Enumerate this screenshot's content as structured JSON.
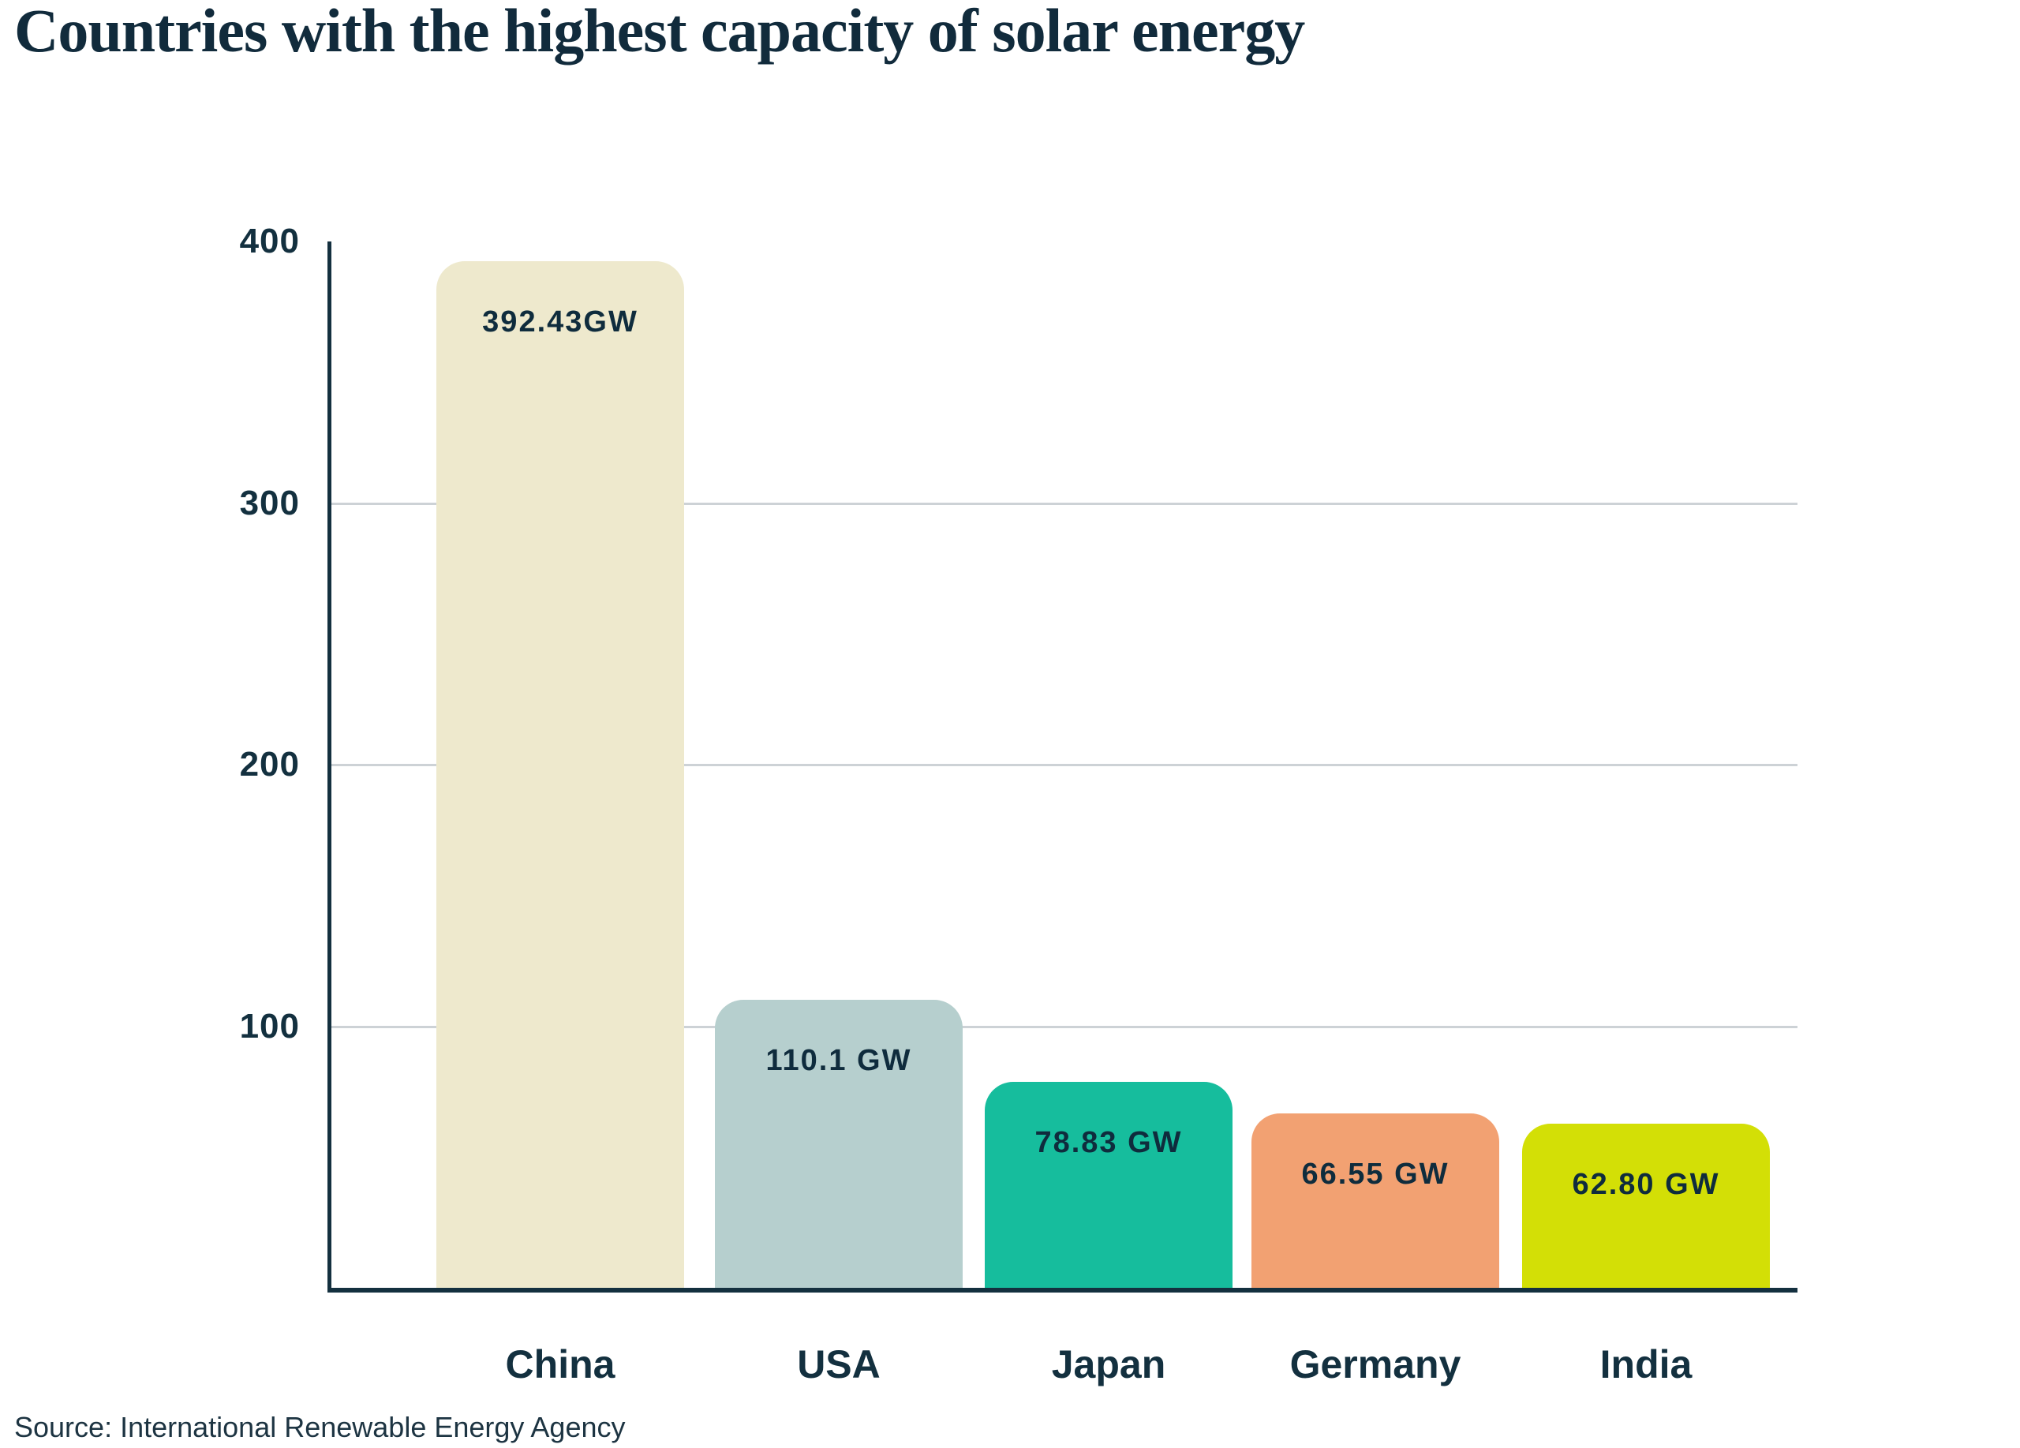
{
  "title": "Countries with the highest capacity of solar energy",
  "source": "Source: International Renewable Energy Agency",
  "colors": {
    "background": "#FFFFFF",
    "title_text": "#112B3C",
    "axis": "#14303F",
    "gridline": "#CDD2D6",
    "tick_text": "#13303F",
    "bar_label_text": "#0F2C3D"
  },
  "chart_data": {
    "type": "bar",
    "title": "Countries with the highest capacity of solar energy",
    "categories": [
      "China",
      "USA",
      "Japan",
      "Germany",
      "India"
    ],
    "values": [
      392.43,
      110.1,
      78.83,
      66.55,
      62.8
    ],
    "bar_labels": [
      "392.43GW",
      "110.1 GW",
      "78.83 GW",
      "66.55 GW",
      "62.80 GW"
    ],
    "bar_colors": [
      "#EEE9CD",
      "#B6CFCE",
      "#16BD9D",
      "#F2A172",
      "#D3DF06"
    ],
    "unit": "GW",
    "xlabel": "",
    "ylabel": "",
    "ylim": [
      0,
      400
    ],
    "yticks": [
      100,
      200,
      300,
      400
    ],
    "gridlines": [
      100,
      200,
      300
    ],
    "grid": "horizontal-only",
    "legend": "none",
    "source": "Source: International Renewable Energy Agency"
  }
}
